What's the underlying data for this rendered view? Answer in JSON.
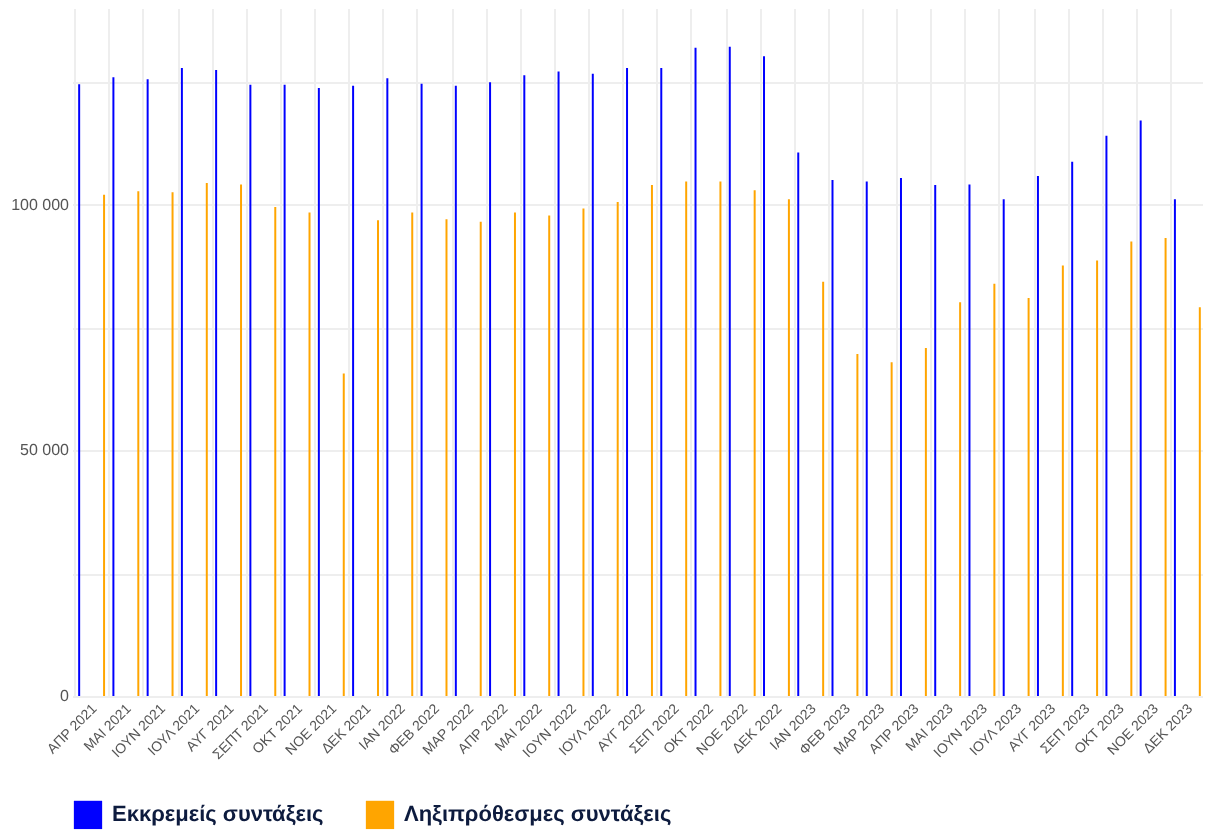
{
  "chart_data": {
    "type": "bar",
    "categories": [
      "ΑΠΡ 2021",
      "ΜΑΙ 2021",
      "ΙΟΥΝ 2021",
      "ΙΟΥΛ 2021",
      "ΑΥΓ 2021",
      "ΣΕΠΤ 2021",
      "ΟΚΤ 2021",
      "ΝΟΕ 2021",
      "ΔΕΚ 2021",
      "ΙΑΝ 2022",
      "ΦΕΒ 2022",
      "ΜΑΡ 2022",
      "ΑΠΡ 2022",
      "ΜΑΙ 2022",
      "ΙΟΥΝ 2022",
      "ΙΟΥΛ 2022",
      "ΑΥΓ 2022",
      "ΣΕΠ 2022",
      "ΟΚΤ 2022",
      "ΝΟΕ 2022",
      "ΔΕΚ 2022",
      "ΙΑΝ 2023",
      "ΦΕΒ 2023",
      "ΜΑΡ 2023",
      "ΑΠΡ 2023",
      "ΜΑΙ 2023",
      "ΙΟΥΝ 2023",
      "ΙΟΥΛ 2023",
      "ΑΥΓ 2023",
      "ΣΕΠ 2023",
      "ΟΚΤ 2023",
      "ΝΟΕ 2023",
      "ΔΕΚ 2023"
    ],
    "series": [
      {
        "name": "Εκκρεμείς συντάξεις",
        "color": "#0000ff",
        "values": [
          124500,
          125900,
          125500,
          127800,
          127400,
          124400,
          124400,
          123700,
          124200,
          125700,
          124600,
          124200,
          124900,
          126300,
          127100,
          126600,
          127800,
          127800,
          131900,
          132100,
          130200,
          110600,
          105000,
          104700,
          105400,
          104000,
          104100,
          101100,
          105800,
          108700,
          114000,
          117100,
          101100
        ]
      },
      {
        "name": "Ληξιπρόθεσμες συντάξεις",
        "color": "#ffa500",
        "values": [
          102000,
          102700,
          102500,
          104400,
          104100,
          99500,
          98400,
          65600,
          96800,
          98400,
          97000,
          96500,
          98400,
          97800,
          99200,
          100500,
          104000,
          104700,
          104700,
          102900,
          101100,
          84300,
          69600,
          67900,
          70800,
          80100,
          83900,
          81000,
          87600,
          88600,
          92500,
          93200,
          79100
        ]
      }
    ],
    "ylim": [
      0,
      140000
    ],
    "yticks": [
      0,
      {
        "value": 25000,
        "label": null
      },
      {
        "value": 50000,
        "label": "50 000"
      },
      {
        "value": 75000,
        "label": null
      },
      {
        "value": 100000,
        "label": "100 000"
      },
      {
        "value": 125000,
        "label": null
      }
    ],
    "grid": true,
    "legend": "bottom"
  }
}
